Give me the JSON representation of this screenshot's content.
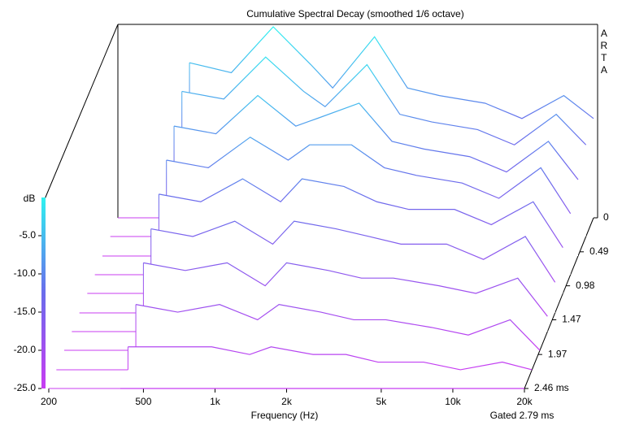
{
  "chart_data": {
    "type": "waterfall",
    "title": "Cumulative Spectral Decay (smoothed 1/6 octave)",
    "xlabel": "Frequency (Hz)",
    "zlabel": "dB",
    "footnote": "Gated 2.79 ms",
    "branding": "ARTA",
    "xscale": "log",
    "xlim": [
      200,
      20000
    ],
    "xticks": [
      200,
      500,
      {
        "value": 1000,
        "label": "1k"
      },
      {
        "value": 2000,
        "label": "2k"
      },
      {
        "value": 5000,
        "label": "5k"
      },
      {
        "value": 10000,
        "label": "10k"
      },
      {
        "value": 20000,
        "label": "20k"
      }
    ],
    "zlim": [
      -25,
      0
    ],
    "zticks": [
      {
        "value": -5,
        "label": "-5.0"
      },
      {
        "value": -10,
        "label": "-10.0"
      },
      {
        "value": -15,
        "label": "-15.0"
      },
      {
        "value": -20,
        "label": "-20.0"
      },
      {
        "value": -25,
        "label": "-25.0"
      }
    ],
    "tlim": [
      0,
      2.46
    ],
    "tticks": [
      0,
      0.49,
      0.98,
      1.47,
      1.97,
      {
        "value": 2.46,
        "label": "2.46 ms"
      }
    ],
    "colormap": [
      "#2ef2f0",
      "#6a6cec",
      "#c83cf2"
    ],
    "frequencies": [
      400,
      600,
      900,
      1300,
      1600,
      2400,
      3300,
      4500,
      7000,
      10000,
      15000,
      20000
    ],
    "slices": [
      {
        "time": 0,
        "values": [
          -4.7,
          -6,
          0,
          -5,
          -8,
          -1.3,
          -8,
          -9,
          -10,
          -12,
          -9,
          -12
        ]
      },
      {
        "time": 0.27,
        "values": [
          -6,
          -7,
          -1.5,
          -6,
          -8,
          -2.5,
          -9,
          -10,
          -11,
          -13,
          -9,
          -13
        ]
      },
      {
        "time": 0.55,
        "values": [
          -8,
          -9,
          -4,
          -8,
          -7,
          -5,
          -10,
          -11,
          -12,
          -14,
          -10,
          -15
        ]
      },
      {
        "time": 0.82,
        "values": [
          -10,
          -11,
          -7,
          -10,
          -8,
          -8,
          -11,
          -12,
          -13,
          -15,
          -11,
          -17
        ]
      },
      {
        "time": 1.09,
        "values": [
          -12,
          -13,
          -10,
          -13,
          -10,
          -11,
          -13,
          -14,
          -14,
          -16,
          -13,
          -19
        ]
      },
      {
        "time": 1.37,
        "values": [
          -14,
          -15,
          -13,
          -16,
          -13,
          -14,
          -15,
          -16,
          -16,
          -18,
          -15,
          -21
        ]
      },
      {
        "time": 1.64,
        "values": [
          -16,
          -17,
          -16,
          -19,
          -16,
          -17,
          -18,
          -18,
          -19,
          -20,
          -18,
          -23
        ]
      },
      {
        "time": 1.91,
        "values": [
          -19,
          -20,
          -19,
          -21,
          -19,
          -20,
          -21,
          -21,
          -22,
          -23,
          -21,
          -25
        ]
      },
      {
        "time": 2.19,
        "values": [
          -22,
          -22,
          -22,
          -23,
          -22,
          -23,
          -23,
          -24,
          -24,
          -25,
          -24,
          -25
        ]
      },
      {
        "time": 2.46,
        "values": [
          -25,
          -25,
          -25,
          -25,
          -25,
          -25,
          -25,
          -25,
          -25,
          -25,
          -25,
          -25
        ]
      }
    ]
  }
}
